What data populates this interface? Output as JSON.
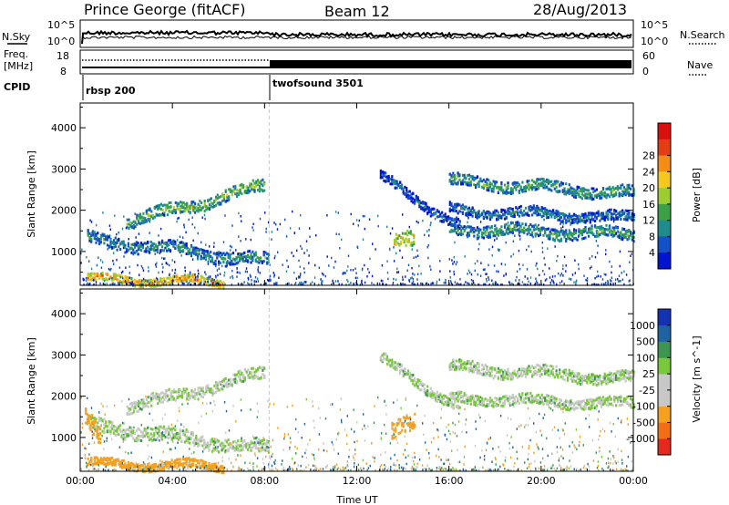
{
  "header": {
    "station": "Prince George (fitACF)",
    "beam": "Beam 12",
    "date": "28/Aug/2013"
  },
  "top_panels": {
    "nsky_label": "N.Sky",
    "nsearch_label": "N.Search",
    "freq_label_1": "Freq.",
    "freq_label_2": "[MHz]",
    "nave_label": "Nave",
    "cpid_label": "CPID",
    "noise_ticks_left": [
      "10^5",
      "10^0"
    ],
    "noise_ticks_right": [
      "10^5",
      "10^0"
    ],
    "freq_ticks": [
      "18",
      "8"
    ],
    "nave_ticks": [
      "60",
      "0"
    ],
    "cpid_segments": [
      {
        "label": "rbsp 200",
        "start_hour": 0
      },
      {
        "label": "twofsound 3501",
        "start_hour": 8.2
      }
    ]
  },
  "chart_data": [
    {
      "type": "heatmap",
      "title": "",
      "quantity": "Power",
      "ylabel": "Slant Range [km]",
      "xlabel": "Time UT",
      "xlim": [
        0,
        24
      ],
      "ylim": [
        180,
        4600
      ],
      "x_ticks": [
        "00:00",
        "04:00",
        "08:00",
        "12:00",
        "16:00",
        "20:00",
        "00:00"
      ],
      "y_ticks": [
        1000,
        2000,
        3000,
        4000
      ],
      "colorbar": {
        "label": "Power [dB]",
        "ticks": [
          "4",
          "8",
          "12",
          "16",
          "20",
          "24",
          "28"
        ],
        "colors": [
          "#0014d2",
          "#1450c8",
          "#1e8c8c",
          "#3ca046",
          "#9ccc30",
          "#f5c81e",
          "#f58c14",
          "#e63c14",
          "#dc0f0f"
        ]
      },
      "bands": [
        {
          "h0": 0.3,
          "h1": 6.2,
          "r0": 330,
          "r1": 260,
          "w": 110,
          "value": 26
        },
        {
          "h0": 0.3,
          "h1": 8.2,
          "r0": 1300,
          "r1": 750,
          "w": 180,
          "value": 12
        },
        {
          "h0": 2.0,
          "h1": 8.0,
          "r0": 1700,
          "r1": 2600,
          "w": 180,
          "value": 16
        },
        {
          "h0": 13.6,
          "h1": 14.5,
          "r0": 1150,
          "r1": 1300,
          "w": 250,
          "value": 22
        },
        {
          "h0": 13.0,
          "h1": 16.5,
          "r0": 2800,
          "r1": 1600,
          "w": 150,
          "value": 8
        },
        {
          "h0": 16.0,
          "h1": 24.0,
          "r0": 2700,
          "r1": 2400,
          "w": 170,
          "value": 14
        },
        {
          "h0": 16.0,
          "h1": 24.0,
          "r0": 2000,
          "r1": 1800,
          "w": 150,
          "value": 10
        },
        {
          "h0": 16.0,
          "h1": 24.0,
          "r0": 1550,
          "r1": 1400,
          "w": 170,
          "value": 14
        }
      ]
    },
    {
      "type": "heatmap",
      "title": "",
      "quantity": "Velocity",
      "ylabel": "Slant Range [km]",
      "xlabel": "Time UT",
      "xlim": [
        0,
        24
      ],
      "ylim": [
        180,
        4600
      ],
      "x_ticks": [
        "00:00",
        "04:00",
        "08:00",
        "12:00",
        "16:00",
        "20:00",
        "00:00"
      ],
      "y_ticks": [
        1000,
        2000,
        3000,
        4000
      ],
      "colorbar": {
        "label": "Velocity [m s^-1]",
        "ticks": [
          "1000",
          "500",
          "100",
          "25",
          "-25",
          "-100",
          "-500",
          "-1000"
        ],
        "colors": [
          "#1432b4",
          "#1e64a0",
          "#3c9650",
          "#78c83c",
          "#c8c8c8",
          "#c8c8c8",
          "#f5a01e",
          "#f56e14",
          "#e6281e"
        ]
      },
      "bands": [
        {
          "h0": 0.3,
          "h1": 6.2,
          "r0": 360,
          "r1": 300,
          "w": 120,
          "value": -150
        },
        {
          "h0": 0.3,
          "h1": 8.2,
          "r0": 1300,
          "r1": 700,
          "w": 200,
          "value": 0
        },
        {
          "h0": 2.0,
          "h1": 8.0,
          "r0": 1700,
          "r1": 2550,
          "w": 180,
          "value": 0
        },
        {
          "h0": 13.5,
          "h1": 14.5,
          "r0": 1100,
          "r1": 1350,
          "w": 250,
          "value": -150
        },
        {
          "h0": 13.0,
          "h1": 16.5,
          "r0": 2900,
          "r1": 1700,
          "w": 150,
          "value": 0
        },
        {
          "h0": 16.0,
          "h1": 24.0,
          "r0": 2700,
          "r1": 2400,
          "w": 170,
          "value": 0
        },
        {
          "h0": 16.0,
          "h1": 24.0,
          "r0": 1950,
          "r1": 1800,
          "w": 150,
          "value": 0
        },
        {
          "h0": 0.2,
          "h1": 0.9,
          "r0": 1450,
          "r1": 900,
          "w": 300,
          "value": -300
        }
      ]
    }
  ]
}
